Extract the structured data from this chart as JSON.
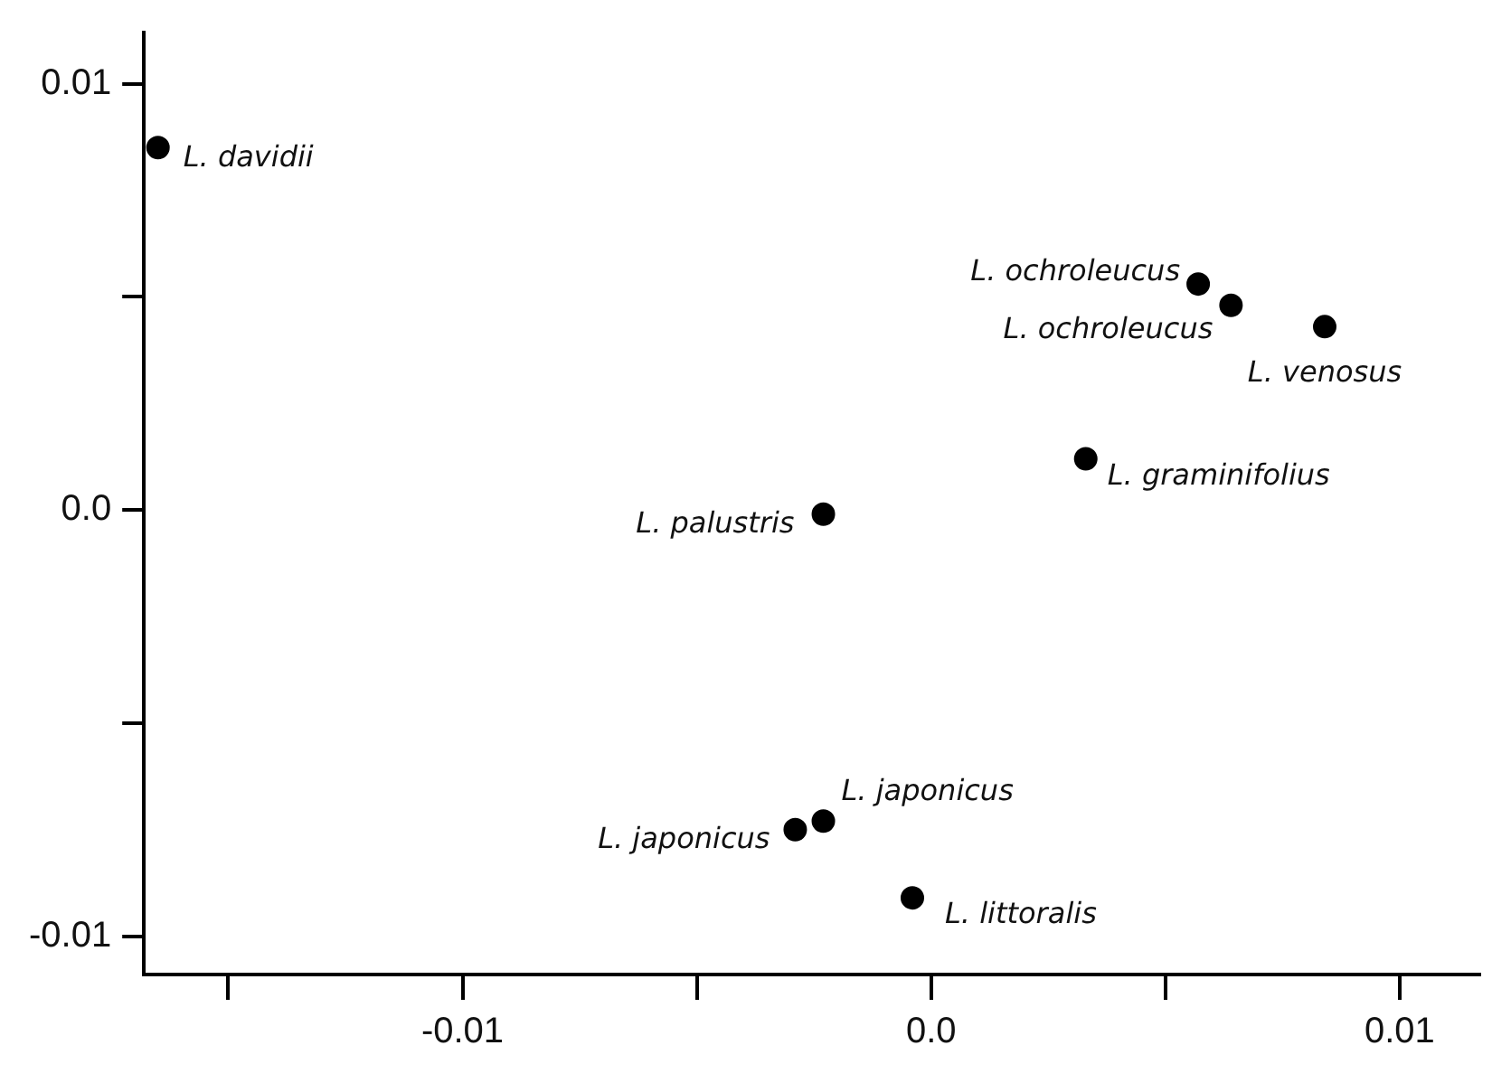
{
  "chart_data": {
    "type": "scatter",
    "color": "#000000",
    "marker": "circle",
    "grid": false,
    "legend": false,
    "x": [
      -0.0165,
      0.0057,
      0.0064,
      0.0084,
      0.0033,
      -0.0023,
      -0.0023,
      -0.0029,
      -0.0004
    ],
    "values": [
      0.0085,
      0.0053,
      0.0048,
      0.0043,
      0.0012,
      -0.0001,
      -0.0073,
      -0.0075,
      -0.0091
    ],
    "xlim": [
      -0.0168,
      0.0117
    ],
    "ylim": [
      -0.0109,
      0.0112
    ],
    "xticks": [
      {
        "value": -0.015,
        "label": null
      },
      -0.01,
      {
        "value": -0.005,
        "label": null
      },
      {
        "value": 0,
        "label": "0.0"
      },
      {
        "value": 0.005,
        "label": null
      },
      0.01
    ],
    "yticks": [
      -0.01,
      {
        "value": -0.005,
        "label": null
      },
      {
        "value": 0,
        "label": "0.0"
      },
      {
        "value": 0.005,
        "label": null
      },
      0.01
    ],
    "annotations": [
      {
        "text": "L. davidii",
        "x": -0.0165,
        "y": 0.0085
      },
      {
        "text": "L. ochroleucus",
        "x": 0.0057,
        "y": 0.0053
      },
      {
        "text": "L. ochroleucus",
        "x": 0.0064,
        "y": 0.0048
      },
      {
        "text": "L. venosus",
        "x": 0.0084,
        "y": 0.0043
      },
      {
        "text": "L. graminifolius",
        "x": 0.0033,
        "y": 0.0012
      },
      {
        "text": "L. palustris",
        "x": -0.0023,
        "y": -0.0001
      },
      {
        "text": "L. japonicus",
        "x": -0.0023,
        "y": -0.0073
      },
      {
        "text": "L. japonicus",
        "x": -0.0029,
        "y": -0.0075
      },
      {
        "text": "L. littoralis",
        "x": -0.0004,
        "y": -0.0091
      }
    ]
  }
}
